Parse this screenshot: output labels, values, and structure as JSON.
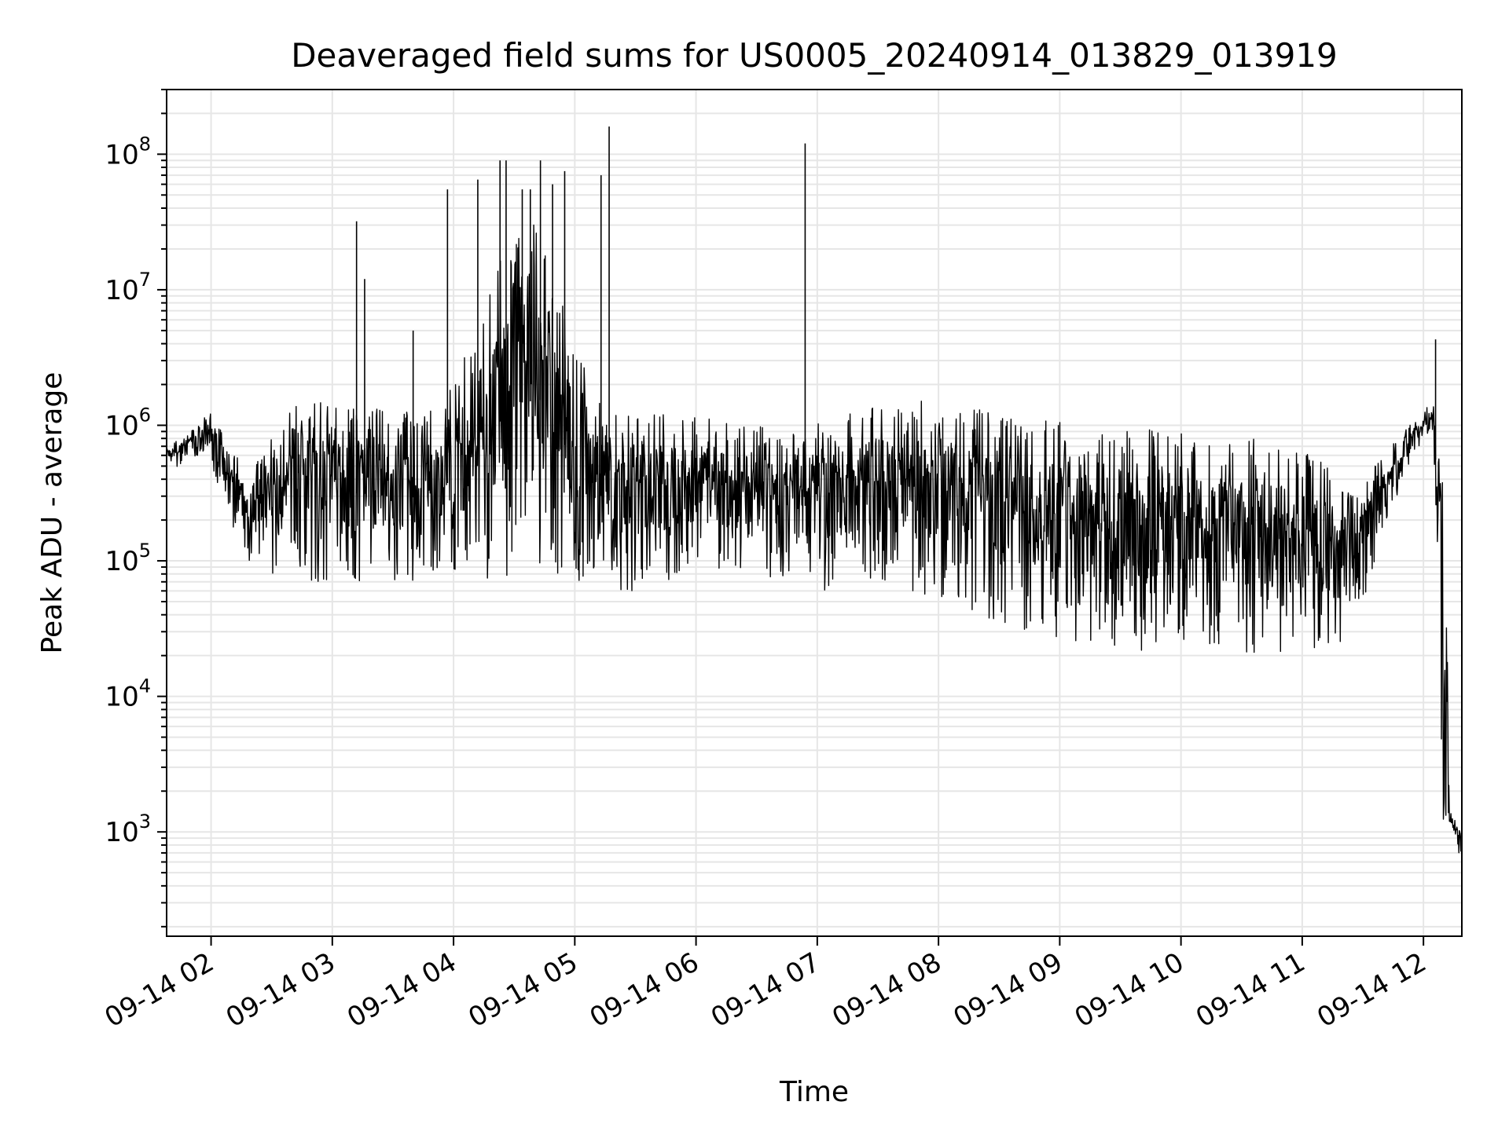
{
  "chart_data": {
    "type": "line",
    "title": "Deaveraged field sums for US0005_20240914_013829_013919",
    "xlabel": "Time",
    "ylabel": "Peak ADU - average",
    "x_axis": {
      "kind": "time",
      "range": [
        "09-14 01:38",
        "09-14 12:19"
      ],
      "tick_labels": [
        "09-14 02",
        "09-14 03",
        "09-14 04",
        "09-14 05",
        "09-14 06",
        "09-14 07",
        "09-14 08",
        "09-14 09",
        "09-14 10",
        "09-14 11",
        "09-14 12"
      ]
    },
    "y_axis": {
      "scale": "log",
      "range": [
        170,
        300000000
      ],
      "tick_labels": [
        {
          "value": 1000,
          "base": "10",
          "exp": "3"
        },
        {
          "value": 10000,
          "base": "10",
          "exp": "4"
        },
        {
          "value": 100000,
          "base": "10",
          "exp": "5"
        },
        {
          "value": 1000000,
          "base": "10",
          "exp": "6"
        },
        {
          "value": 10000000,
          "base": "10",
          "exp": "7"
        },
        {
          "value": 100000000,
          "base": "10",
          "exp": "8"
        }
      ]
    },
    "grid": true,
    "series_color": "#000000",
    "envelope": [
      {
        "t": "01:38",
        "low": 450000,
        "high": 700000
      },
      {
        "t": "01:50",
        "low": 550000,
        "high": 900000
      },
      {
        "t": "02:00",
        "low": 550000,
        "high": 1300000
      },
      {
        "t": "02:10",
        "low": 150000,
        "high": 700000
      },
      {
        "t": "02:20",
        "low": 90000,
        "high": 500000
      },
      {
        "t": "02:30",
        "low": 80000,
        "high": 900000
      },
      {
        "t": "02:45",
        "low": 70000,
        "high": 1800000
      },
      {
        "t": "03:00",
        "low": 70000,
        "high": 1500000
      },
      {
        "t": "03:15",
        "low": 70000,
        "high": 1400000
      },
      {
        "t": "03:30",
        "low": 70000,
        "high": 1300000
      },
      {
        "t": "03:45",
        "low": 70000,
        "high": 1200000
      },
      {
        "t": "04:00",
        "low": 80000,
        "high": 2000000
      },
      {
        "t": "04:15",
        "low": 70000,
        "high": 8000000
      },
      {
        "t": "04:30",
        "low": 70000,
        "high": 30000000
      },
      {
        "t": "04:45",
        "low": 80000,
        "high": 30000000
      },
      {
        "t": "05:00",
        "low": 60000,
        "high": 4000000
      },
      {
        "t": "05:15",
        "low": 60000,
        "high": 1300000
      },
      {
        "t": "05:30",
        "low": 60000,
        "high": 1300000
      },
      {
        "t": "05:45",
        "low": 70000,
        "high": 1200000
      },
      {
        "t": "06:00",
        "low": 80000,
        "high": 1200000
      },
      {
        "t": "06:15",
        "low": 80000,
        "high": 1100000
      },
      {
        "t": "06:30",
        "low": 80000,
        "high": 1000000
      },
      {
        "t": "06:45",
        "low": 70000,
        "high": 900000
      },
      {
        "t": "07:00",
        "low": 60000,
        "high": 1100000
      },
      {
        "t": "07:30",
        "low": 60000,
        "high": 1500000
      },
      {
        "t": "08:00",
        "low": 55000,
        "high": 1600000
      },
      {
        "t": "08:30",
        "low": 35000,
        "high": 1200000
      },
      {
        "t": "09:00",
        "low": 25000,
        "high": 1100000
      },
      {
        "t": "09:30",
        "low": 22000,
        "high": 1000000
      },
      {
        "t": "10:00",
        "low": 21000,
        "high": 900000
      },
      {
        "t": "10:30",
        "low": 21000,
        "high": 850000
      },
      {
        "t": "10:50",
        "low": 21000,
        "high": 700000
      },
      {
        "t": "11:10",
        "low": 22000,
        "high": 600000
      },
      {
        "t": "11:25",
        "low": 25000,
        "high": 300000
      },
      {
        "t": "11:40",
        "low": 150000,
        "high": 600000
      },
      {
        "t": "11:55",
        "low": 600000,
        "high": 1100000
      },
      {
        "t": "12:05",
        "low": 800000,
        "high": 1500000
      },
      {
        "t": "12:10",
        "low": 1000,
        "high": 1400000
      },
      {
        "t": "12:13",
        "low": 900,
        "high": 1400
      },
      {
        "t": "12:19",
        "low": 600,
        "high": 1100
      }
    ],
    "spikes": [
      {
        "t": "03:12",
        "value": 32000000
      },
      {
        "t": "03:16",
        "value": 12000000
      },
      {
        "t": "03:40",
        "value": 5000000
      },
      {
        "t": "03:57",
        "value": 55000000
      },
      {
        "t": "04:12",
        "value": 65000000
      },
      {
        "t": "04:23",
        "value": 90000000
      },
      {
        "t": "04:26",
        "value": 90000000
      },
      {
        "t": "04:34",
        "value": 55000000
      },
      {
        "t": "04:38",
        "value": 55000000
      },
      {
        "t": "04:43",
        "value": 90000000
      },
      {
        "t": "04:49",
        "value": 60000000
      },
      {
        "t": "04:55",
        "value": 75000000
      },
      {
        "t": "05:13",
        "value": 70000000
      },
      {
        "t": "05:17",
        "value": 160000000
      },
      {
        "t": "06:54",
        "value": 120000000
      },
      {
        "t": "12:06",
        "value": 4300000
      }
    ]
  }
}
